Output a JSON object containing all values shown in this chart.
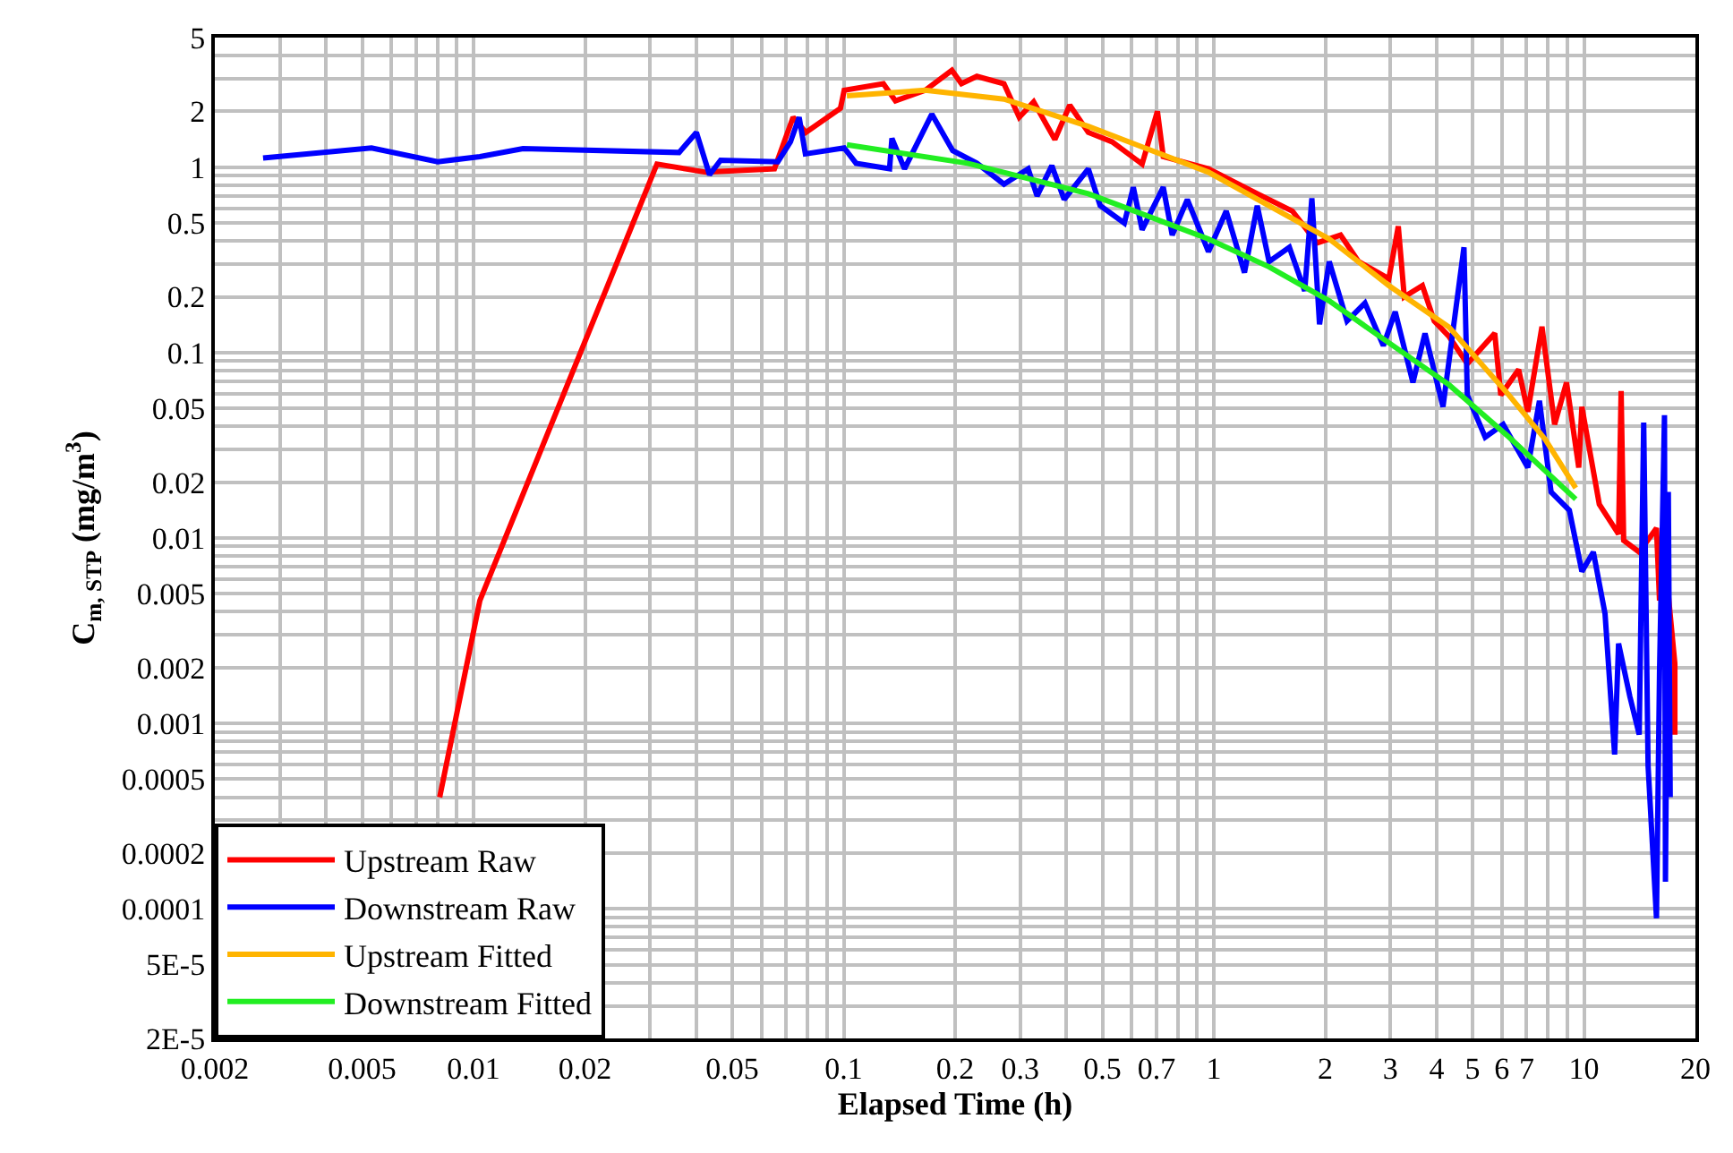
{
  "chart_data": {
    "type": "line",
    "xlabel": "Elapsed Time (h)",
    "ylabel": "C$_{m, STP}$ (mg/m$^{3}$)",
    "log": "xy",
    "grid": true,
    "legend": "bottom left",
    "marker": "none",
    "line_style": "solid",
    "xlim": [
      0.002,
      20
    ],
    "ylim": [
      2e-05,
      5
    ],
    "xticks": [
      0.002,
      {
        "value": 0.003,
        "label": null
      },
      {
        "value": 0.004,
        "label": null
      },
      0.005,
      {
        "value": 0.006,
        "label": null
      },
      {
        "value": 0.007,
        "label": null
      },
      {
        "value": 0.008,
        "label": null
      },
      {
        "value": 0.009,
        "label": null
      },
      0.01,
      0.02,
      {
        "value": 0.03,
        "label": null
      },
      {
        "value": 0.04,
        "label": null
      },
      0.05,
      {
        "value": 0.06,
        "label": null
      },
      {
        "value": 0.07,
        "label": null
      },
      {
        "value": 0.08,
        "label": null
      },
      {
        "value": 0.09,
        "label": null
      },
      0.1,
      0.2,
      0.3,
      {
        "value": 0.4,
        "label": null
      },
      0.5,
      {
        "value": 0.6,
        "label": null
      },
      0.7,
      {
        "value": 0.8,
        "label": null
      },
      {
        "value": 0.9,
        "label": null
      },
      1,
      2,
      3,
      4,
      5,
      6,
      7,
      {
        "value": 8,
        "label": null
      },
      {
        "value": 9,
        "label": null
      },
      10,
      20
    ],
    "yticks": [
      {
        "value": 2e-05,
        "label": "2E-5"
      },
      {
        "value": 3e-05,
        "label": null
      },
      {
        "value": 4e-05,
        "label": null
      },
      {
        "value": 5e-05,
        "label": "5E-5"
      },
      {
        "value": 6e-05,
        "label": null
      },
      {
        "value": 7e-05,
        "label": null
      },
      {
        "value": 8e-05,
        "label": null
      },
      {
        "value": 9e-05,
        "label": null
      },
      0.0001,
      0.0002,
      {
        "value": 0.0003,
        "label": null
      },
      {
        "value": 0.0004,
        "label": null
      },
      0.0005,
      {
        "value": 0.0006,
        "label": null
      },
      {
        "value": 0.0007,
        "label": null
      },
      {
        "value": 0.0008,
        "label": null
      },
      {
        "value": 0.0009,
        "label": null
      },
      0.001,
      0.002,
      {
        "value": 0.003,
        "label": null
      },
      {
        "value": 0.004,
        "label": null
      },
      0.005,
      {
        "value": 0.006,
        "label": null
      },
      {
        "value": 0.007,
        "label": null
      },
      {
        "value": 0.008,
        "label": null
      },
      {
        "value": 0.009,
        "label": null
      },
      0.01,
      0.02,
      {
        "value": 0.03,
        "label": null
      },
      {
        "value": 0.04,
        "label": null
      },
      0.05,
      {
        "value": 0.06,
        "label": null
      },
      {
        "value": 0.07,
        "label": null
      },
      {
        "value": 0.08,
        "label": null
      },
      {
        "value": 0.09,
        "label": null
      },
      0.1,
      0.2,
      {
        "value": 0.3,
        "label": null
      },
      {
        "value": 0.4,
        "label": null
      },
      0.5,
      {
        "value": 0.6,
        "label": null
      },
      {
        "value": 0.7,
        "label": null
      },
      {
        "value": 0.8,
        "label": null
      },
      {
        "value": 0.9,
        "label": null
      },
      1,
      2,
      {
        "value": 3,
        "label": null
      },
      {
        "value": 4,
        "label": null
      },
      5
    ],
    "series": [
      {
        "name": "Upstream Raw",
        "color": "#ff0000",
        "x": [
          0.0081,
          0.0104,
          0.0313,
          0.0424,
          0.065,
          0.073,
          0.079,
          0.098,
          0.1003,
          0.128,
          0.138,
          0.166,
          0.196,
          0.208,
          0.229,
          0.271,
          0.298,
          0.326,
          0.372,
          0.408,
          0.458,
          0.531,
          0.64,
          0.704,
          0.73,
          0.967,
          1.31,
          1.63,
          1.9,
          2.2,
          2.46,
          2.97,
          3.15,
          3.27,
          3.66,
          3.94,
          4.32,
          4.84,
          5.74,
          5.96,
          6.66,
          7.05,
          7.7,
          8.33,
          8.97,
          9.68,
          9.87,
          11.0,
          12.4,
          12.6,
          12.8,
          14.1,
          15.7,
          16.0,
          16.6,
          17.6,
          17.6
        ],
        "values": [
          0.0004,
          0.0046,
          1.04,
          0.94,
          0.98,
          1.86,
          1.54,
          2.08,
          2.6,
          2.82,
          2.28,
          2.6,
          3.33,
          2.82,
          3.09,
          2.82,
          1.86,
          2.25,
          1.41,
          2.16,
          1.54,
          1.37,
          1.04,
          2.0,
          1.14,
          0.98,
          0.72,
          0.58,
          0.39,
          0.43,
          0.31,
          0.25,
          0.48,
          0.2,
          0.23,
          0.148,
          0.122,
          0.087,
          0.127,
          0.059,
          0.081,
          0.048,
          0.138,
          0.041,
          0.069,
          0.024,
          0.051,
          0.0152,
          0.0105,
          0.062,
          0.0097,
          0.0084,
          0.0113,
          0.0046,
          0.0072,
          0.0021,
          0.00087
        ]
      },
      {
        "name": "Downstream Raw",
        "color": "#0000ff",
        "x": [
          0.0027,
          0.0053,
          0.008,
          0.0104,
          0.0136,
          0.0359,
          0.04,
          0.0434,
          0.0465,
          0.0664,
          0.0718,
          0.0758,
          0.0788,
          0.1003,
          0.108,
          0.133,
          0.135,
          0.146,
          0.173,
          0.197,
          0.229,
          0.271,
          0.315,
          0.333,
          0.365,
          0.394,
          0.458,
          0.493,
          0.573,
          0.606,
          0.64,
          0.73,
          0.772,
          0.848,
          0.967,
          1.08,
          1.21,
          1.31,
          1.41,
          1.6,
          1.76,
          1.84,
          1.93,
          2.05,
          2.29,
          2.56,
          2.87,
          3.09,
          3.45,
          3.72,
          4.16,
          4.74,
          4.84,
          5.41,
          6.05,
          7.05,
          7.58,
          8.15,
          9.13,
          9.87,
          10.6,
          11.4,
          12.1,
          12.4,
          13.3,
          14.1,
          14.5,
          14.9,
          15.7,
          16.0,
          16.5,
          16.6,
          16.9,
          17.1
        ],
        "values": [
          1.12,
          1.27,
          1.07,
          1.14,
          1.26,
          1.2,
          1.54,
          0.91,
          1.09,
          1.07,
          1.37,
          1.86,
          1.18,
          1.27,
          1.05,
          0.98,
          1.43,
          0.98,
          1.93,
          1.23,
          1.05,
          0.81,
          0.98,
          0.7,
          1.02,
          0.67,
          0.98,
          0.62,
          0.5,
          0.78,
          0.46,
          0.78,
          0.43,
          0.67,
          0.35,
          0.58,
          0.27,
          0.62,
          0.31,
          0.37,
          0.215,
          0.68,
          0.142,
          0.31,
          0.148,
          0.185,
          0.109,
          0.166,
          0.069,
          0.127,
          0.051,
          0.37,
          0.059,
          0.035,
          0.041,
          0.024,
          0.055,
          0.0177,
          0.0141,
          0.0066,
          0.0084,
          0.0039,
          0.00068,
          0.0027,
          0.0014,
          0.00087,
          0.042,
          0.00059,
          8.9e-05,
          0.0019,
          0.046,
          0.00014,
          0.0177,
          0.0004
        ]
      },
      {
        "name": "Upstream Fitted",
        "color": "#ffb400",
        "x": [
          0.102,
          0.166,
          0.271,
          0.458,
          0.967,
          1.41,
          2.05,
          2.97,
          4.32,
          5.2,
          6.27,
          7.86,
          9.5
        ],
        "values": [
          2.43,
          2.6,
          2.33,
          1.66,
          0.94,
          0.62,
          0.41,
          0.23,
          0.137,
          0.09,
          0.059,
          0.034,
          0.0186
        ]
      },
      {
        "name": "Downstream Fitted",
        "color": "#22ee22",
        "x": [
          0.102,
          0.216,
          0.458,
          0.967,
          1.41,
          2.05,
          2.97,
          4.32,
          6.27,
          9.5
        ],
        "values": [
          1.32,
          1.05,
          0.72,
          0.41,
          0.29,
          0.19,
          0.113,
          0.067,
          0.035,
          0.0162
        ]
      }
    ]
  }
}
